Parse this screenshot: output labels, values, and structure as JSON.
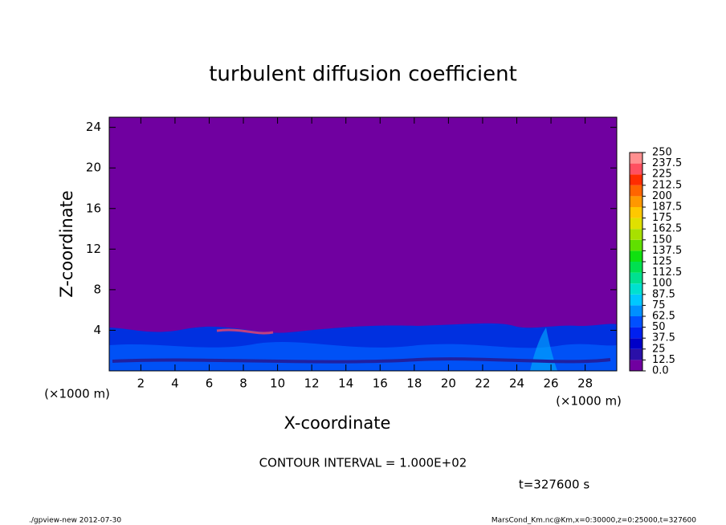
{
  "chart_data": {
    "type": "contour",
    "title": "turbulent diffusion coefficient",
    "xlabel": "X-coordinate",
    "ylabel": "Z-coordinate",
    "xunit": "(×1000 m)",
    "xlim": [
      0.15,
      29.85
    ],
    "xticks": [
      2,
      4,
      6,
      8,
      10,
      12,
      14,
      16,
      18,
      20,
      22,
      24,
      26,
      28
    ],
    "ylim": [
      0,
      25
    ],
    "yticks": [
      4,
      8,
      12,
      16,
      20,
      24
    ],
    "levels": [
      {
        "value": 0,
        "label": "0.0"
      },
      12.5,
      25,
      37.5,
      50,
      62.5,
      75,
      87.5,
      100,
      112.5,
      125,
      137.5,
      150,
      162.5,
      175,
      187.5,
      200,
      212.5,
      225,
      237.5,
      250
    ],
    "level_colors": [
      "#7000a0",
      "#2a10a8",
      "#0000c8",
      "#0020f0",
      "#0050ff",
      "#0090ff",
      "#00c8ff",
      "#00e0d0",
      "#00e090",
      "#00e050",
      "#10e010",
      "#60e000",
      "#a8e000",
      "#e0e000",
      "#ffc800",
      "#ff9800",
      "#ff6400",
      "#ff2c00",
      "#ff5060",
      "#ff9090"
    ],
    "annotation": "CONTOUR INTERVAL = 1.000E+02",
    "time_label": "t=327600 s",
    "footer_left": "./gpview-new  2012-07-30",
    "footer_right": "MarsCond_Km.nc@Km,x=0:30000,z=0:25000,t=327600"
  }
}
